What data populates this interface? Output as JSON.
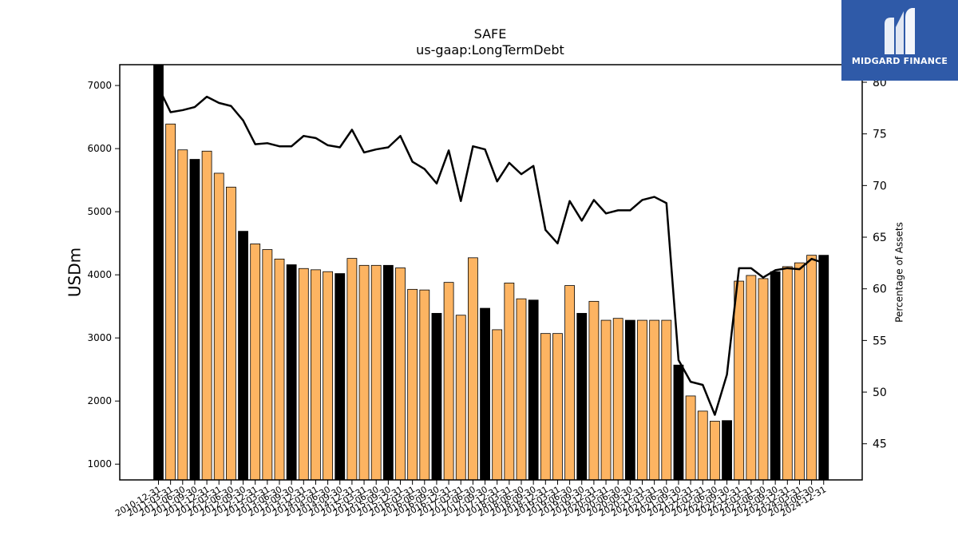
{
  "chart_data": {
    "type": "bar",
    "title": "SAFE",
    "subtitle": "us-gaap:LongTermDebt",
    "ylabel": "USDm",
    "y2label": "Percentage of Assets",
    "ylim": [
      750,
      7330
    ],
    "y2lim": [
      41.5,
      81.7
    ],
    "yticks": [
      1000,
      2000,
      3000,
      4000,
      5000,
      6000,
      7000
    ],
    "y2ticks": [
      45,
      50,
      55,
      60,
      65,
      70,
      75,
      80
    ],
    "categories": [
      "2010-12-31",
      "2011-03-31",
      "2011-06-30",
      "2011-09-30",
      "2011-12-31",
      "2012-03-31",
      "2012-06-30",
      "2012-09-30",
      "2012-12-31",
      "2013-03-31",
      "2013-06-30",
      "2013-09-30",
      "2013-12-31",
      "2014-03-31",
      "2014-06-30",
      "2014-09-30",
      "2014-12-31",
      "2015-03-31",
      "2015-06-30",
      "2015-09-30",
      "2015-12-31",
      "2016-03-31",
      "2016-06-30",
      "2016-09-30",
      "2016-12-31",
      "2017-03-31",
      "2017-06-30",
      "2017-09-30",
      "2017-12-31",
      "2018-03-31",
      "2018-06-30",
      "2018-09-30",
      "2018-12-31",
      "2019-03-31",
      "2019-06-30",
      "2019-09-30",
      "2019-12-31",
      "2020-03-31",
      "2020-06-30",
      "2020-09-30",
      "2020-12-31",
      "2021-03-31",
      "2021-06-30",
      "2021-09-30",
      "2021-12-31",
      "2022-03-31",
      "2022-06-30",
      "2022-09-30",
      "2022-12-31",
      "2023-03-31",
      "2023-06-30",
      "2023-09-30",
      "2023-12-31",
      "2024-03-31",
      "2024-06-30",
      "2024-12-31"
    ],
    "values": [
      7330,
      6390,
      5980,
      5830,
      5960,
      5610,
      5390,
      4690,
      4490,
      4400,
      4250,
      4160,
      4100,
      4080,
      4050,
      4020,
      4260,
      4150,
      4150,
      4150,
      4110,
      3770,
      3760,
      3390,
      3880,
      3360,
      4270,
      3470,
      3130,
      3870,
      3620,
      3600,
      3070,
      3070,
      3830,
      3390,
      3580,
      3280,
      3310,
      3280,
      3280,
      3280,
      3280,
      2570,
      2080,
      1840,
      1680,
      1690,
      3900,
      3990,
      3940,
      4050,
      4130,
      4190,
      4310,
      4310
    ],
    "highlight": [
      "2010-12-31",
      "2011-09-30",
      "2012-09-30",
      "2013-09-30",
      "2014-09-30",
      "2015-09-30",
      "2016-09-30",
      "2017-09-30",
      "2018-09-30",
      "2019-09-30",
      "2020-09-30",
      "2021-09-30",
      "2022-09-30",
      "2023-09-30",
      "2024-12-31"
    ],
    "series": [
      {
        "values": [
          79.5,
          77.1,
          77.3,
          77.6,
          78.6,
          78.0,
          77.7,
          76.3,
          74.0,
          74.1,
          73.8,
          73.8,
          74.8,
          74.6,
          73.9,
          73.7,
          75.4,
          73.2,
          73.5,
          73.7,
          74.8,
          72.3,
          71.6,
          70.2,
          73.4,
          68.5,
          73.8,
          73.5,
          70.4,
          72.2,
          71.1,
          71.9,
          65.7,
          64.4,
          68.5,
          66.6,
          68.6,
          67.3,
          67.6,
          67.6,
          68.6,
          68.9,
          68.3,
          53.1,
          51.0,
          50.7,
          47.8,
          51.7,
          62.0,
          62.0,
          61.1,
          61.8,
          62.0,
          61.9,
          62.9,
          62.5
        ],
        "axis": "right",
        "color": "#000000"
      }
    ],
    "colors": {
      "bar": "#fdb462",
      "bar_highlight": "#000000",
      "bar_edge": "#000000",
      "line": "#000000"
    },
    "grid": false
  },
  "logo": {
    "text": "MIDGARD FINANCE",
    "icon": "midgard-logo-icon",
    "background": "#2f5aa8"
  }
}
